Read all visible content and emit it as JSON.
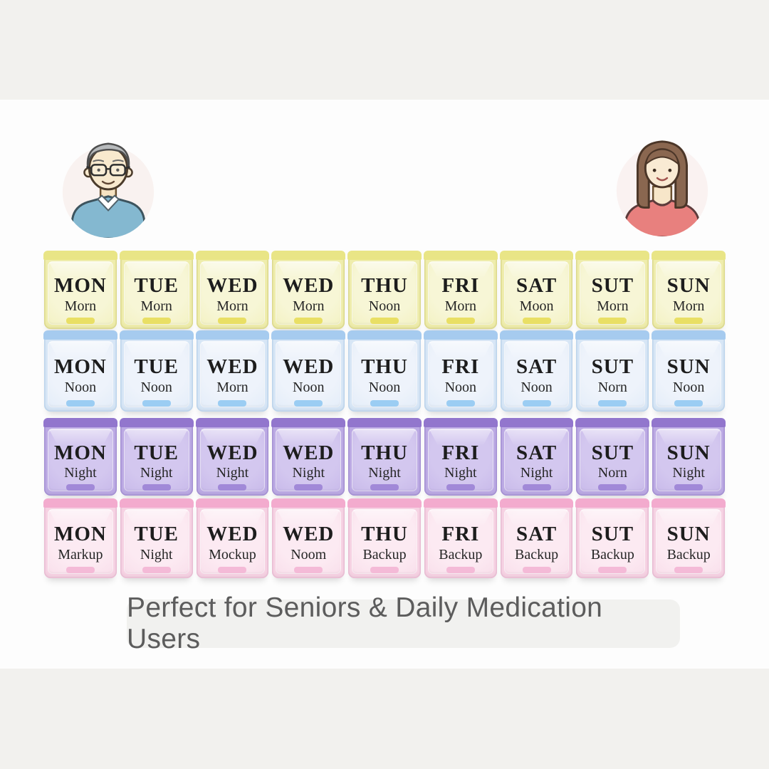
{
  "banner": {
    "text": "Perfect for Seniors & Daily Medication Users"
  },
  "avatars": {
    "left": {
      "icon": "senior-man-avatar"
    },
    "right": {
      "icon": "woman-avatar"
    }
  },
  "organizer": {
    "rows": [
      {
        "id": "morning",
        "colors": {
          "hinge": "#e9e586",
          "base": "#efedac",
          "center": "#f7f6d6",
          "tab": "#e9df64",
          "edge": "#dcd98c"
        },
        "cells": [
          {
            "day": "MON",
            "label": "Morn"
          },
          {
            "day": "TUE",
            "label": "Morn"
          },
          {
            "day": "WED",
            "label": "Morn"
          },
          {
            "day": "WED",
            "label": "Morn"
          },
          {
            "day": "THU",
            "label": "Noon"
          },
          {
            "day": "FRI",
            "label": "Morn"
          },
          {
            "day": "SAT",
            "label": "Moon"
          },
          {
            "day": "SUT",
            "label": "Morn"
          },
          {
            "day": "SUN",
            "label": "Morn"
          }
        ]
      },
      {
        "id": "noon",
        "colors": {
          "hinge": "#a6cbef",
          "base": "#d7e6f6",
          "center": "#eef3fb",
          "tab": "#9bcdf3",
          "edge": "#bcd4ec"
        },
        "cells": [
          {
            "day": "MON",
            "label": "Noon"
          },
          {
            "day": "TUE",
            "label": "Noon"
          },
          {
            "day": "WED",
            "label": "Morn"
          },
          {
            "day": "WED",
            "label": "Noon"
          },
          {
            "day": "THU",
            "label": "Noon"
          },
          {
            "day": "FRI",
            "label": "Noon"
          },
          {
            "day": "SAT",
            "label": "Noon"
          },
          {
            "day": "SUT",
            "label": "Norn"
          },
          {
            "day": "SUN",
            "label": "Noon"
          }
        ]
      },
      {
        "id": "night",
        "colors": {
          "hinge": "#9276cd",
          "base": "#bcaae4",
          "center": "#d3c7ef",
          "tab": "#a189d8",
          "edge": "#a490d3"
        },
        "cells": [
          {
            "day": "MON",
            "label": "Night"
          },
          {
            "day": "TUE",
            "label": "Night"
          },
          {
            "day": "WED",
            "label": "Night"
          },
          {
            "day": "WED",
            "label": "Night"
          },
          {
            "day": "THU",
            "label": "Night"
          },
          {
            "day": "FRI",
            "label": "Night"
          },
          {
            "day": "SAT",
            "label": "Night"
          },
          {
            "day": "SUT",
            "label": "Norn"
          },
          {
            "day": "SUN",
            "label": "Night"
          }
        ]
      },
      {
        "id": "backup",
        "colors": {
          "hinge": "#f3abce",
          "base": "#f6d2e3",
          "center": "#fceaf2",
          "tab": "#f4bad7",
          "edge": "#e9bcd3"
        },
        "cells": [
          {
            "day": "MON",
            "label": "Markup"
          },
          {
            "day": "TUE",
            "label": "Night"
          },
          {
            "day": "WED",
            "label": "Mockup"
          },
          {
            "day": "WED",
            "label": "Noom"
          },
          {
            "day": "THU",
            "label": "Backup"
          },
          {
            "day": "FRI",
            "label": "Backup"
          },
          {
            "day": "SAT",
            "label": "Backup"
          },
          {
            "day": "SUT",
            "label": "Backup"
          },
          {
            "day": "SUN",
            "label": "Backup"
          }
        ]
      }
    ]
  }
}
